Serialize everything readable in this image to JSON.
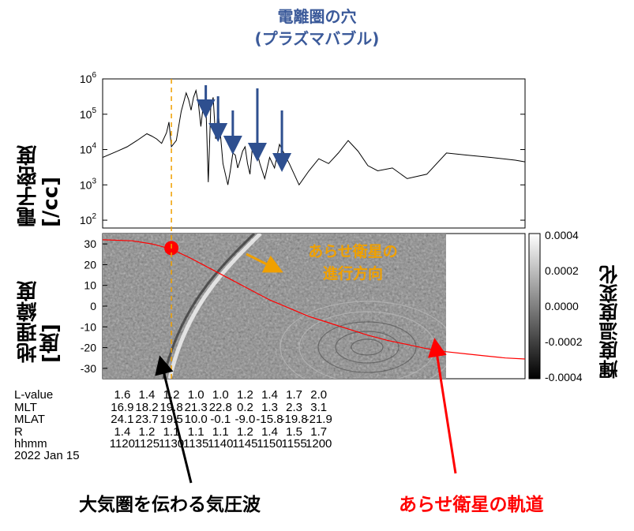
{
  "title": {
    "line1": "電離圏の穴",
    "line2": "(プラズマバブル)"
  },
  "colors": {
    "title": "#3b5a9a",
    "satellite": "#ff0000",
    "orange": "#f0a000",
    "arrow_blue": "#2e4f8f",
    "wave_label": "#000000"
  },
  "chart_data": [
    {
      "type": "line",
      "ylabel": "電子密度 [/cc]",
      "yscale": "log",
      "ylim": [
        60,
        1000000
      ],
      "y_ticks": [
        "10^2",
        "10^3",
        "10^4",
        "10^5",
        "10^6"
      ],
      "xlim": [
        1116,
        1202
      ],
      "series": [
        {
          "x": [
            1116,
            1119,
            1121,
            1123,
            1125,
            1126,
            1127,
            1128,
            1129,
            1129.5,
            1130,
            1131,
            1132,
            1133,
            1133.5,
            1134,
            1134.5,
            1135,
            1135.5,
            1136,
            1136.5,
            1137,
            1137.5,
            1138,
            1138.5,
            1139,
            1139.5,
            1140,
            1140.5,
            1141,
            1141.5,
            1142,
            1142.5,
            1143,
            1143.5,
            1144,
            1144.5,
            1145,
            1145.5,
            1146,
            1146.5,
            1147,
            1148,
            1149,
            1150,
            1151,
            1152,
            1154,
            1156,
            1158,
            1160,
            1162,
            1164,
            1166,
            1168,
            1170,
            1172,
            1175,
            1178,
            1182,
            1186,
            1190,
            1195,
            1200,
            1202
          ],
          "y": [
            6000,
            9000,
            12000,
            18000,
            28000,
            24000,
            20000,
            15000,
            30000,
            60000,
            12000,
            18000,
            120000,
            400000,
            260000,
            130000,
            300000,
            470000,
            200000,
            45000,
            180000,
            250000,
            1200,
            150000,
            300000,
            20000,
            120000,
            25000,
            4000,
            2000,
            1000,
            2500,
            8000,
            7000,
            3000,
            5000,
            9000,
            12000,
            4000,
            2000,
            12000,
            15000,
            4000,
            1500,
            6000,
            3000,
            14000,
            4000,
            1000,
            2500,
            5500,
            4000,
            8000,
            18000,
            9000,
            3500,
            2500,
            3000,
            1500,
            2000,
            8000,
            7000,
            6000,
            5000,
            4500
          ]
        }
      ],
      "arrows_x": [
        1137,
        1139.5,
        1142.5,
        1147.5,
        1152.5
      ],
      "event_x": 1130
    },
    {
      "type": "heatmap",
      "ylabel": "地理緯度 [度]",
      "ylim": [
        -35,
        35
      ],
      "y_ticks": [
        30,
        20,
        10,
        0,
        -10,
        -20,
        -30
      ],
      "colorbar": {
        "label": "輝度温度変化",
        "ticks": [
          "0.0004",
          "0.0002",
          "0.0000",
          "-0.0002",
          "-0.0004"
        ]
      },
      "satellite_track_lat_x": [
        1116,
        1122,
        1126,
        1130,
        1134,
        1138,
        1142,
        1146,
        1150,
        1154,
        1158,
        1162,
        1166,
        1170,
        1174,
        1178,
        1182,
        1186,
        1190,
        1194,
        1198,
        1202
      ],
      "satellite_track_lat_y": [
        32,
        31.5,
        30,
        27.5,
        23,
        18,
        13,
        8,
        3,
        -1,
        -5,
        -8,
        -11,
        -14,
        -16.5,
        -18.5,
        -20.5,
        -22,
        -23,
        -24,
        -25,
        -25.5
      ],
      "satellite_marker": {
        "x": 1130,
        "y": 28
      }
    }
  ],
  "annotations": {
    "sat_direction": [
      "あらせ衛星の",
      "進行方向"
    ],
    "wave_label": "大気圏を伝わる気圧波",
    "orbit_label": "あらせ衛星の軌道"
  },
  "table": {
    "rows": [
      {
        "label": "L-value",
        "values": [
          "1.6",
          "1.4",
          "1.2",
          "1.0",
          "1.0",
          "1.2",
          "1.4",
          "1.7",
          "2.0"
        ]
      },
      {
        "label": "MLT",
        "values": [
          "16.9",
          "18.2",
          "19.8",
          "21.3",
          "22.8",
          "0.2",
          "1.3",
          "2.3",
          "3.1"
        ]
      },
      {
        "label": "MLAT",
        "values": [
          "24.1",
          "23.7",
          "19.5",
          "10.0",
          "-0.1",
          "-9.0",
          "-15.8",
          "-19.8",
          "-21.9"
        ]
      },
      {
        "label": "R",
        "values": [
          "1.4",
          "1.2",
          "1.1",
          "1.1",
          "1.1",
          "1.2",
          "1.4",
          "1.5",
          "1.7"
        ]
      },
      {
        "label": "hhmm",
        "values": [
          "1120",
          "1125",
          "1130",
          "1135",
          "1140",
          "1145",
          "1150",
          "1155",
          "1200"
        ]
      }
    ],
    "date": "2022 Jan 15"
  }
}
